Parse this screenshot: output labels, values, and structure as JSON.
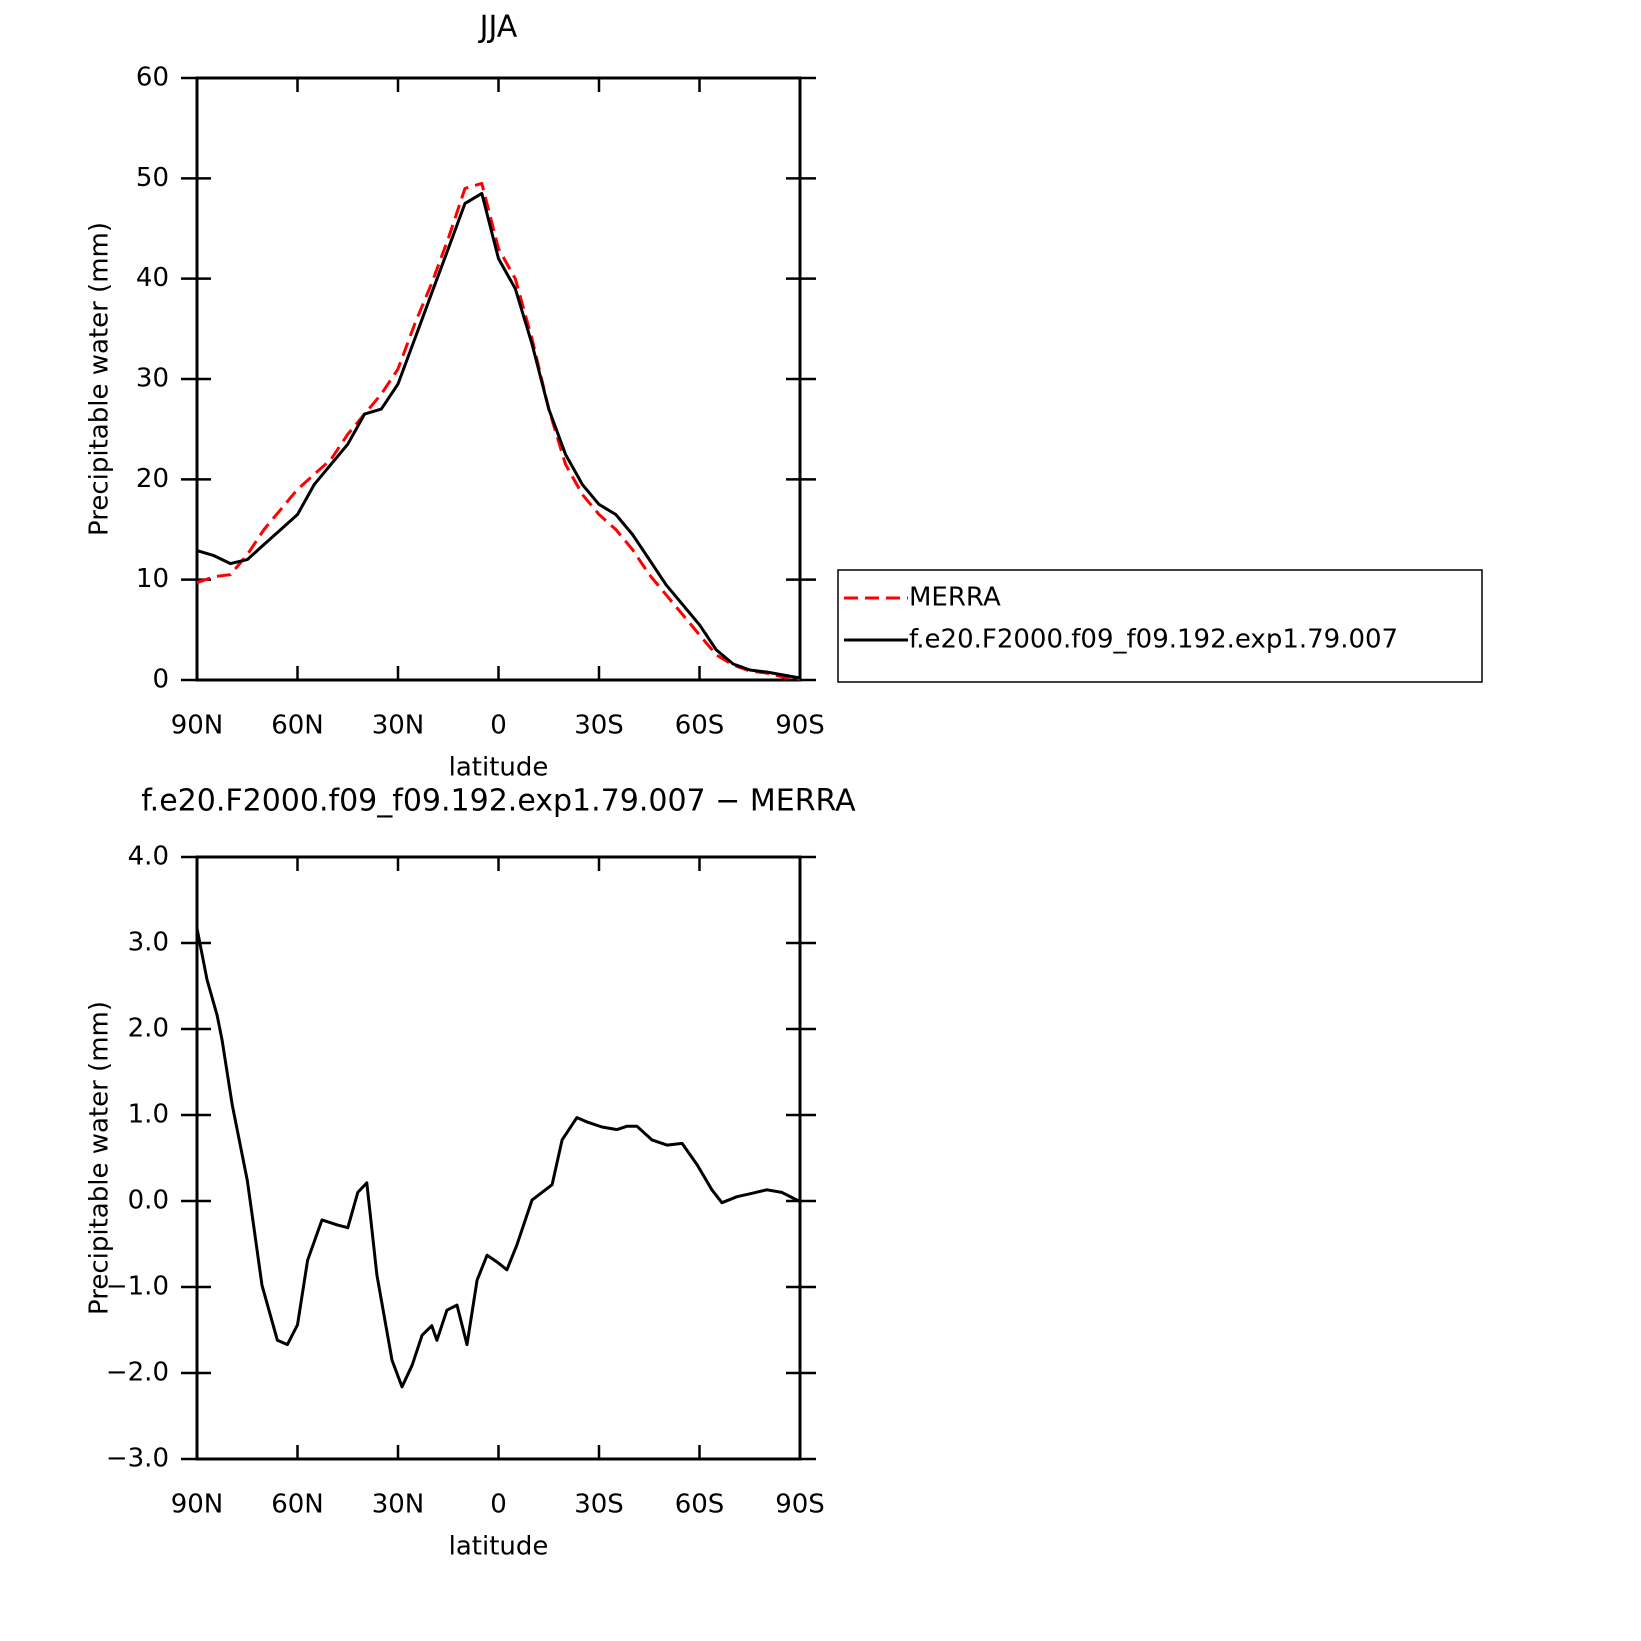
{
  "chart_data": [
    {
      "type": "line",
      "title": "JJA",
      "x_label": "latitude",
      "y_label": "Precipitable water (mm)",
      "xlim": [
        90,
        -90
      ],
      "xticks": [
        {
          "value": 90,
          "label": "90N"
        },
        {
          "value": 60,
          "label": "60N"
        },
        {
          "value": 30,
          "label": "30N"
        },
        0,
        {
          "value": -30,
          "label": "30S"
        },
        {
          "value": -60,
          "label": "60S"
        },
        {
          "value": -90,
          "label": "90S"
        }
      ],
      "ylim": [
        0,
        60
      ],
      "yticks": [
        0,
        10,
        20,
        30,
        40,
        50,
        60
      ],
      "legend": "right",
      "x": [
        90,
        85,
        80,
        75,
        70,
        65,
        60,
        55,
        50,
        45,
        40,
        35,
        30,
        25,
        20,
        15,
        10,
        5,
        0,
        -5,
        -10,
        -15,
        -20,
        -25,
        -30,
        -35,
        -40,
        -45,
        -50,
        -55,
        -60,
        -65,
        -70,
        -75,
        -80,
        -85,
        -90
      ],
      "series": [
        {
          "name": "MERRA",
          "color": "#ff0000",
          "line_style": "dashed",
          "values": [
            9.7,
            10.3,
            10.5,
            12.5,
            15,
            17,
            19,
            20.5,
            22,
            24.5,
            26.5,
            28.5,
            31,
            35.5,
            39.5,
            44,
            49,
            49.5,
            43,
            40,
            34,
            27,
            21.5,
            18.5,
            16.5,
            15,
            13,
            10.5,
            8.5,
            6.5,
            4.5,
            2.5,
            1.5,
            0.9,
            0.7,
            0.3,
            0.1
          ]
        },
        {
          "name": "f.e20.F2000.f09_f09.192.exp1.79.007",
          "color": "#000000",
          "line_style": "solid",
          "values": [
            12.9,
            12.4,
            11.6,
            12.0,
            13.5,
            15,
            16.5,
            19.5,
            21.5,
            23.5,
            26.5,
            27,
            29.5,
            34,
            38.5,
            43,
            47.5,
            48.5,
            42,
            39,
            33.5,
            27,
            22.5,
            19.5,
            17.5,
            16.5,
            14.5,
            12,
            9.5,
            7.5,
            5.5,
            3,
            1.6,
            1.0,
            0.8,
            0.5,
            0.2
          ]
        }
      ]
    },
    {
      "type": "line",
      "title": "f.e20.F2000.f09_f09.192.exp1.79.007 − MERRA",
      "x_label": "latitude",
      "y_label": "Precipitable water (mm)",
      "xlim": [
        90,
        -90
      ],
      "xticks": [
        {
          "value": 90,
          "label": "90N"
        },
        {
          "value": 60,
          "label": "60N"
        },
        {
          "value": 30,
          "label": "30N"
        },
        0,
        {
          "value": -30,
          "label": "30S"
        },
        {
          "value": -60,
          "label": "60S"
        },
        {
          "value": -90,
          "label": "90S"
        }
      ],
      "ylim": [
        -3,
        4
      ],
      "yticks": [
        {
          "value": -3,
          "label": "−3.0"
        },
        {
          "value": -2,
          "label": "−2.0"
        },
        {
          "value": -1,
          "label": "−1.0"
        },
        {
          "value": 0,
          "label": "0.0"
        },
        {
          "value": 1,
          "label": "1.0"
        },
        {
          "value": 2,
          "label": "2.0"
        },
        {
          "value": 3,
          "label": "3.0"
        },
        {
          "value": 4,
          "label": "4.0"
        }
      ],
      "x": [
        90,
        87,
        84,
        82.5,
        79.5,
        75,
        70.6,
        66,
        63,
        60,
        57,
        52.7,
        48,
        45,
        42,
        39.3,
        36.3,
        31.8,
        28.8,
        25.8,
        22.8,
        19.9,
        18.4,
        15.4,
        12.4,
        9.4,
        6.4,
        3.4,
        0.4,
        -2.5,
        -5.5,
        -10,
        -13,
        -16,
        -19,
        -23.4,
        -26.4,
        -30.9,
        -35.4,
        -38.4,
        -41.3,
        -45.8,
        -50.3,
        -54.8,
        -59.3,
        -63.7,
        -66.7,
        -71.2,
        -75.7,
        -80.1,
        -84.6,
        -89.1,
        -90
      ],
      "series": [
        {
          "name": "f.e20.F2000.f09_f09.192.exp1.79.007 − MERRA",
          "color": "#000000",
          "line_style": "solid",
          "values": [
            3.17,
            2.57,
            2.16,
            1.87,
            1.12,
            0.24,
            -0.98,
            -1.62,
            -1.67,
            -1.44,
            -0.69,
            -0.22,
            -0.28,
            -0.31,
            0.1,
            0.21,
            -0.86,
            -1.85,
            -2.16,
            -1.91,
            -1.56,
            -1.45,
            -1.62,
            -1.27,
            -1.21,
            -1.67,
            -0.92,
            -0.63,
            -0.71,
            -0.8,
            -0.51,
            0.01,
            0.1,
            0.19,
            0.71,
            0.97,
            0.92,
            0.86,
            0.83,
            0.87,
            0.87,
            0.71,
            0.65,
            0.67,
            0.42,
            0.13,
            -0.02,
            0.05,
            0.09,
            0.13,
            0.1,
            0.01,
            0
          ]
        }
      ]
    }
  ]
}
